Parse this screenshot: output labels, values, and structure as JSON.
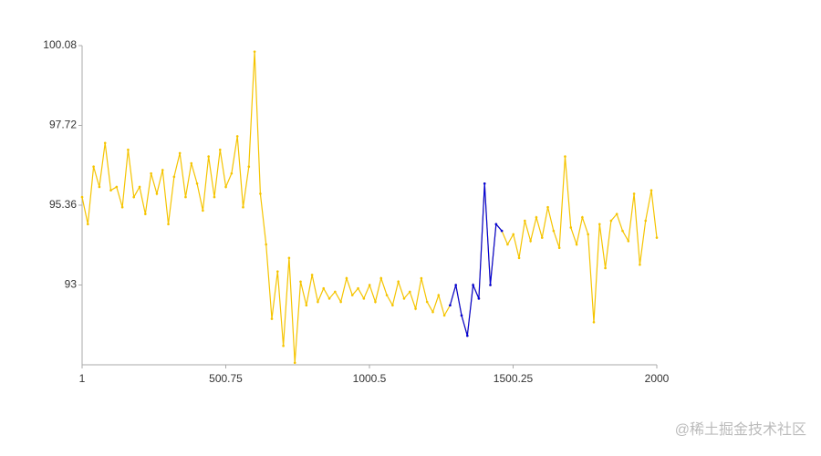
{
  "chart_data": {
    "type": "line",
    "x": [
      1,
      21,
      41,
      61,
      81,
      101,
      121,
      141,
      161,
      181,
      201,
      221,
      241,
      261,
      281,
      301,
      321,
      341,
      361,
      381,
      401,
      421,
      441,
      461,
      481,
      501,
      521,
      541,
      561,
      581,
      601,
      621,
      641,
      661,
      681,
      701,
      721,
      741,
      761,
      781,
      801,
      821,
      841,
      861,
      881,
      901,
      921,
      941,
      961,
      981,
      1001,
      1021,
      1041,
      1061,
      1081,
      1101,
      1121,
      1141,
      1161,
      1181,
      1201,
      1221,
      1241,
      1261,
      1281,
      1301,
      1321,
      1341,
      1361,
      1381,
      1401,
      1421,
      1441,
      1461,
      1481,
      1501,
      1521,
      1541,
      1561,
      1581,
      1601,
      1621,
      1641,
      1661,
      1681,
      1701,
      1721,
      1741,
      1761,
      1781,
      1801,
      1821,
      1841,
      1861,
      1881,
      1901,
      1921,
      1941,
      1961,
      1981,
      2000
    ],
    "series": [
      {
        "color": "#f5c400",
        "values": [
          95.6,
          94.8,
          96.5,
          95.9,
          97.2,
          95.8,
          95.9,
          95.3,
          97.0,
          95.6,
          95.9,
          95.1,
          96.3,
          95.7,
          96.4,
          94.8,
          96.2,
          96.9,
          95.6,
          96.6,
          96.0,
          95.2,
          96.8,
          95.6,
          97.0,
          95.9,
          96.3,
          97.4,
          95.3,
          96.5,
          99.9,
          95.7,
          94.2,
          92.0,
          93.4,
          91.2,
          93.8,
          90.7,
          93.1,
          92.4,
          93.3,
          92.5,
          92.9,
          92.6,
          92.8,
          92.5,
          93.2,
          92.7,
          92.9,
          92.6,
          93.0,
          92.5,
          93.2,
          92.7,
          92.4,
          93.1,
          92.6,
          92.8,
          92.3,
          93.2,
          92.5,
          92.2,
          92.7,
          92.1,
          92.4,
          93.0,
          92.1,
          91.5,
          93.0,
          92.6,
          96.0,
          93.0,
          94.8,
          94.6,
          94.2,
          94.5,
          93.8,
          94.9,
          94.3,
          95.0,
          94.4,
          95.3,
          94.6,
          94.1,
          96.8,
          94.7,
          94.2,
          95.0,
          94.5,
          91.9,
          94.8,
          93.5,
          94.9,
          95.1,
          94.6,
          94.3,
          95.7,
          93.6,
          94.9,
          95.8,
          94.4
        ]
      },
      {
        "color": "#0000dd",
        "values": [
          null,
          null,
          null,
          null,
          null,
          null,
          null,
          null,
          null,
          null,
          null,
          null,
          null,
          null,
          null,
          null,
          null,
          null,
          null,
          null,
          null,
          null,
          null,
          null,
          null,
          null,
          null,
          null,
          null,
          null,
          null,
          null,
          null,
          null,
          null,
          null,
          null,
          null,
          null,
          null,
          null,
          null,
          null,
          null,
          null,
          null,
          null,
          null,
          null,
          null,
          null,
          null,
          null,
          null,
          null,
          null,
          null,
          null,
          null,
          null,
          null,
          null,
          null,
          null,
          92.4,
          93.0,
          92.1,
          91.5,
          93.0,
          92.6,
          96.0,
          93.0,
          94.8,
          94.6,
          null,
          null,
          null,
          null,
          null,
          null,
          null,
          null,
          null,
          null,
          null,
          null,
          null,
          null,
          null,
          null,
          null,
          null,
          null,
          null,
          null,
          null,
          null,
          null,
          null,
          null,
          null
        ]
      }
    ],
    "xlim": [
      1,
      2000
    ],
    "xticks": [
      1,
      500.75,
      1000.5,
      1500.25,
      2000
    ],
    "ylim": [
      90.64,
      100.08
    ],
    "yticks": [
      93,
      95.36,
      97.72,
      100.08
    ],
    "grid": false,
    "watermark": "@稀土掘金技术社区"
  }
}
